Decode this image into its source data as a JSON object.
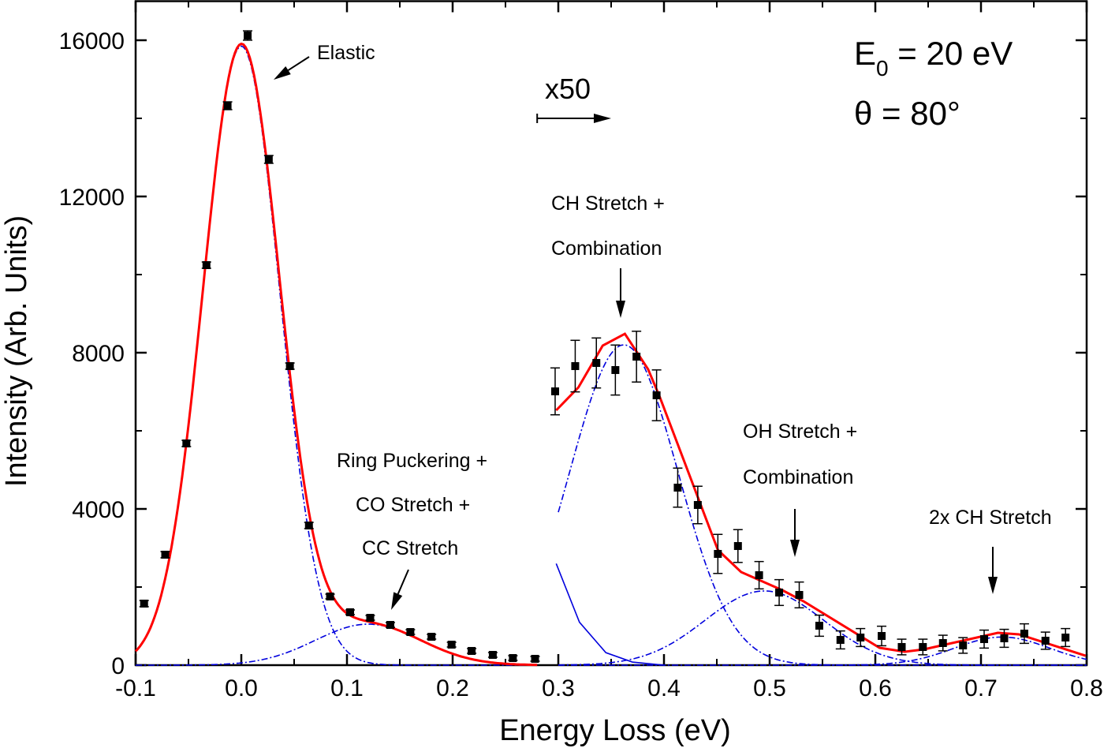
{
  "chart_data": {
    "type": "scatter",
    "xlabel": "Energy Loss (eV)",
    "ylabel": "Intensity (Arb. Units)",
    "xlim": [
      -0.1,
      0.8
    ],
    "ylim": [
      0,
      17000
    ],
    "x_ticks": [
      "-0.1",
      "0.0",
      "0.1",
      "0.2",
      "0.3",
      "0.4",
      "0.5",
      "0.6",
      "0.7",
      "0.8"
    ],
    "x_tick_values": [
      -0.1,
      0,
      0.1,
      0.2,
      0.3,
      0.4,
      0.5,
      0.6,
      0.7,
      0.8
    ],
    "y_ticks": [
      "0",
      "4000",
      "8000",
      "12000",
      "16000"
    ],
    "y_tick_values": [
      0,
      4000,
      8000,
      12000,
      16000
    ],
    "grid": false,
    "colors": {
      "data": "#000000",
      "fit": "#ff0000",
      "components": "#0000dd"
    },
    "data_points": {
      "x": [
        -0.092,
        -0.072,
        -0.052,
        -0.033,
        -0.013,
        0.006,
        0.026,
        0.046,
        0.064,
        0.084,
        0.103,
        0.122,
        0.141,
        0.16,
        0.18,
        0.199,
        0.218,
        0.238,
        0.257,
        0.278,
        0.297,
        0.316,
        0.336,
        0.354,
        0.374,
        0.393,
        0.413,
        0.432,
        0.451,
        0.47,
        0.49,
        0.509,
        0.528,
        0.547,
        0.567,
        0.586,
        0.606,
        0.625,
        0.645,
        0.664,
        0.683,
        0.703,
        0.722,
        0.741,
        0.761,
        0.78
      ],
      "y": [
        1576,
        2828,
        5677,
        10242,
        14323,
        16121,
        12949,
        7657,
        3576,
        1758,
        1354,
        1212,
        1030,
        848,
        727,
        525,
        364,
        263,
        182,
        162,
        7010,
        7657,
        7737,
        7556,
        7899,
        6909,
        4545,
        4101,
        2848,
        3050,
        2303,
        1859,
        1798,
        1010,
        646,
        707,
        747,
        465,
        465,
        566,
        505,
        667,
        687,
        808,
        626,
        707
      ],
      "error": [
        80,
        80,
        80,
        80,
        100,
        120,
        100,
        80,
        80,
        60,
        60,
        60,
        60,
        60,
        60,
        60,
        60,
        60,
        60,
        60,
        600,
        660,
        640,
        640,
        650,
        650,
        500,
        480,
        500,
        420,
        350,
        330,
        330,
        270,
        230,
        230,
        250,
        200,
        200,
        200,
        200,
        230,
        230,
        250,
        220,
        230
      ]
    },
    "fit_left": {
      "type": "sum-of-gaussians",
      "x_range": [
        -0.1,
        0.28
      ],
      "components": [
        {
          "center": 0.0,
          "amplitude": 15850,
          "sigma": 0.0363
        },
        {
          "center": 0.12,
          "amplitude": 1050,
          "sigma": 0.05
        }
      ]
    },
    "fit_right": {
      "x": [
        0.298,
        0.319,
        0.342,
        0.363,
        0.385,
        0.396,
        0.451,
        0.473,
        0.512,
        0.532,
        0.604,
        0.628,
        0.646,
        0.716,
        0.736,
        0.799
      ],
      "y": [
        6525,
        7111,
        8181,
        8484,
        7575,
        6868,
        2949,
        2384,
        1919,
        1636,
        444,
        343,
        404,
        828,
        788,
        242
      ]
    },
    "components_right": [
      {
        "center": 0.362,
        "amplitude": 8200,
        "sigma": 0.051,
        "x_range": [
          0.3,
          0.8
        ]
      },
      {
        "center": 0.495,
        "amplitude": 1900,
        "sigma": 0.056,
        "x_range": [
          0.3,
          0.8
        ]
      },
      {
        "center": 0.72,
        "amplitude": 720,
        "sigma": 0.045,
        "x_range": [
          0.3,
          0.8
        ]
      }
    ],
    "elastic_tail_right": {
      "x": [
        0.298,
        0.32,
        0.345,
        0.37,
        0.4
      ],
      "y": [
        2600,
        1100,
        320,
        80,
        0
      ]
    },
    "scale_marker": {
      "label": "x50",
      "x_start": 0.28,
      "x_end": 0.35
    },
    "annotations": [
      {
        "id": "elastic",
        "lines": [
          "Elastic"
        ]
      },
      {
        "id": "ring",
        "lines": [
          "Ring Puckering +",
          "CO Stretch +",
          "CC Stretch"
        ]
      },
      {
        "id": "ch",
        "lines": [
          "CH Stretch +",
          "Combination"
        ]
      },
      {
        "id": "oh",
        "lines": [
          "OH Stretch +",
          "Combination"
        ]
      },
      {
        "id": "ch2",
        "lines": [
          "2x CH Stretch"
        ]
      }
    ],
    "conditions": {
      "energy_prefix": "E",
      "energy_sub": "0",
      "energy_value": " = 20 eV",
      "angle": "θ = 80°"
    }
  }
}
